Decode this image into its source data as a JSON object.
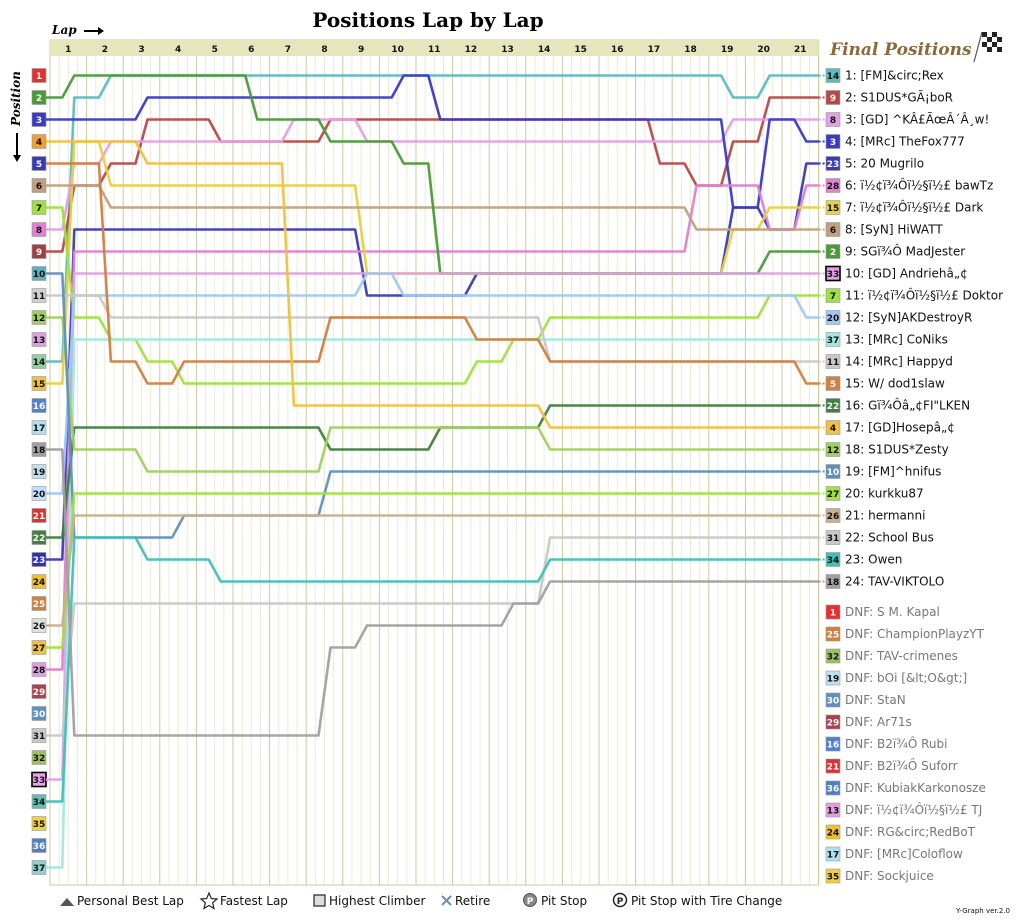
{
  "title": "Positions Lap by Lap",
  "xlabel": "Lap",
  "ylabel": "Position",
  "final_heading": "Final Positions",
  "version": "Y-Graph ver.2.0",
  "colors": {
    "background": "#ffffff",
    "header_band": "#e6e6bd",
    "grid": "#d4d4ad",
    "plot_bg": "#ffffff"
  },
  "legend": [
    {
      "icon": "triangle-icon",
      "label": "Personal Best Lap"
    },
    {
      "icon": "star-icon",
      "label": "Fastest Lap"
    },
    {
      "icon": "square-icon",
      "label": "Highest Climber"
    },
    {
      "icon": "cross-icon",
      "label": "Retire"
    },
    {
      "icon": "pit-stop-icon",
      "label": "Pit Stop"
    },
    {
      "icon": "pit-tire-icon",
      "label": "Pit Stop with Tire Change"
    }
  ],
  "chart_data": {
    "type": "line",
    "title": "Positions Lap by Lap",
    "xlabel": "Lap",
    "ylabel": "Position",
    "laps": [
      1,
      2,
      3,
      4,
      5,
      6,
      7,
      8,
      9,
      10,
      11,
      12,
      13,
      14,
      15,
      16,
      17,
      18,
      19,
      20,
      21
    ],
    "positions": [
      1,
      2,
      3,
      4,
      5,
      6,
      7,
      8,
      9,
      10,
      11,
      12,
      13,
      14,
      15,
      16,
      17,
      18,
      19,
      20,
      21,
      22,
      23,
      24,
      25,
      26,
      27,
      28,
      29,
      30,
      31,
      32,
      33,
      34,
      35,
      36,
      37
    ],
    "ylim": [
      1,
      37
    ],
    "xlim": [
      0,
      21
    ],
    "grid": true,
    "position_colors": [
      "#e53030",
      "#4a9a3a",
      "#3a3ac8",
      "#f0a030",
      "#3a3ab8",
      "#c0a080",
      "#a0e040",
      "#e080d0",
      "#a04040",
      "#60b0c0",
      "#d0d0d0",
      "#a0d060",
      "#e0a0e0",
      "#90d0a0",
      "#f0c040",
      "#5080d0",
      "#b0e0f0",
      "#a0a0a0",
      "#c0e0f0",
      "#c0e0ff",
      "#e03030",
      "#408040",
      "#3030b0",
      "#f0c030",
      "#d08040",
      "#e0e0e0",
      "#f0c040",
      "#e0a0e0",
      "#b04050",
      "#6090c0",
      "#c8c8c8",
      "#a0c060",
      "#f0a0f0",
      "#60c0b0",
      "#f0d040",
      "#5080c0",
      "#90d0d0"
    ],
    "series": [
      {
        "name": "[FM]&circ;Rex",
        "color": "#5cbcbc",
        "grid": 14,
        "final": 1,
        "positions": [
          14,
          2,
          1,
          1,
          1,
          1,
          1,
          1,
          1,
          1,
          1,
          1,
          1,
          1,
          1,
          1,
          1,
          1,
          1,
          2,
          1,
          1
        ]
      },
      {
        "name": "S1DUS*GÃ¡boR",
        "color": "#b84848",
        "grid": 9,
        "final": 2,
        "positions": [
          9,
          6,
          5,
          3,
          3,
          4,
          4,
          4,
          3,
          3,
          3,
          3,
          3,
          3,
          3,
          3,
          3,
          5,
          6,
          4,
          2,
          2
        ]
      },
      {
        "name": "[GD] ^KÂ£ÃœÂ´Â¸w!",
        "color": "#e4a0e4",
        "grid": 8,
        "final": 3,
        "positions": [
          8,
          5,
          4,
          4,
          4,
          4,
          4,
          3,
          3,
          4,
          4,
          4,
          4,
          4,
          4,
          4,
          4,
          4,
          4,
          3,
          3,
          3
        ]
      },
      {
        "name": "[MRc] TheFox777",
        "color": "#3a3ac8",
        "grid": 3,
        "final": 4,
        "positions": [
          3,
          3,
          3,
          2,
          2,
          2,
          2,
          2,
          2,
          2,
          1,
          3,
          3,
          3,
          3,
          3,
          3,
          3,
          3,
          7,
          3,
          4
        ]
      },
      {
        "name": "20 Mugrilo",
        "color": "#3a3ab8",
        "grid": 23,
        "final": 5,
        "positions": [
          23,
          8,
          8,
          8,
          8,
          8,
          8,
          8,
          8,
          11,
          11,
          11,
          10,
          10,
          10,
          10,
          10,
          10,
          10,
          7,
          8,
          5
        ]
      },
      {
        "name": "bawTz",
        "color": "#e080d0",
        "grid": 28,
        "final": 6,
        "positions": [
          28,
          9,
          9,
          9,
          9,
          9,
          9,
          9,
          9,
          9,
          9,
          9,
          9,
          9,
          9,
          9,
          9,
          9,
          6,
          6,
          8,
          6
        ]
      },
      {
        "name": "Dark",
        "color": "#e8d040",
        "grid": 15,
        "final": 7,
        "positions": [
          15,
          4,
          6,
          6,
          6,
          6,
          6,
          6,
          6,
          10,
          10,
          10,
          10,
          10,
          10,
          10,
          10,
          10,
          10,
          8,
          7,
          7
        ]
      },
      {
        "name": "[SyN] HiWATT",
        "color": "#c0a080",
        "grid": 6,
        "final": 8,
        "positions": [
          6,
          6,
          7,
          7,
          7,
          7,
          7,
          7,
          7,
          7,
          7,
          7,
          7,
          7,
          7,
          7,
          7,
          7,
          8,
          8,
          8,
          8
        ]
      },
      {
        "name": "MadJester",
        "color": "#4a9a3a",
        "grid": 2,
        "final": 9,
        "positions": [
          2,
          1,
          1,
          1,
          1,
          1,
          3,
          3,
          4,
          4,
          5,
          10,
          10,
          10,
          10,
          10,
          10,
          10,
          10,
          10,
          9,
          9
        ]
      },
      {
        "name": "[GD] Andriehâ„¢",
        "color": "#e0a0e0",
        "grid": 33,
        "final": 10,
        "positions": [
          33,
          10,
          10,
          10,
          10,
          10,
          10,
          10,
          10,
          10,
          10,
          10,
          10,
          10,
          10,
          10,
          10,
          10,
          10,
          10,
          10,
          10
        ]
      },
      {
        "name": "Doktor",
        "color": "#a0e040",
        "grid": 7,
        "final": 11,
        "positions": [
          7,
          12,
          13,
          14,
          15,
          15,
          15,
          15,
          15,
          15,
          15,
          15,
          14,
          13,
          12,
          12,
          12,
          12,
          12,
          12,
          11,
          11
        ]
      },
      {
        "name": "[SyN]AKDestroyR",
        "color": "#a0c8f0",
        "grid": 20,
        "final": 12,
        "positions": [
          20,
          11,
          11,
          11,
          11,
          11,
          11,
          11,
          11,
          10,
          11,
          11,
          11,
          11,
          11,
          11,
          11,
          11,
          11,
          11,
          11,
          12
        ]
      },
      {
        "name": "[MRc] CoNiks",
        "color": "#a0e8e0",
        "grid": 37,
        "final": 13,
        "positions": [
          37,
          13,
          13,
          13,
          13,
          13,
          13,
          13,
          13,
          13,
          13,
          13,
          13,
          13,
          13,
          13,
          13,
          13,
          13,
          13,
          13,
          13
        ]
      },
      {
        "name": "[MRc] Happyd",
        "color": "#c8c8c8",
        "grid": 11,
        "final": 14,
        "positions": [
          11,
          11,
          12,
          12,
          12,
          12,
          12,
          12,
          12,
          12,
          12,
          12,
          12,
          12,
          14,
          14,
          14,
          14,
          14,
          14,
          14,
          14
        ]
      },
      {
        "name": "W/ dod1slaw",
        "color": "#d08040",
        "grid": 5,
        "final": 15,
        "positions": [
          5,
          5,
          14,
          15,
          14,
          14,
          14,
          14,
          12,
          12,
          12,
          12,
          13,
          13,
          14,
          14,
          14,
          14,
          14,
          14,
          14,
          15
        ]
      },
      {
        "name": "Gi¾Ô¢FI\"LKEN",
        "color": "#408040",
        "grid": 22,
        "final": 16,
        "positions": [
          22,
          17,
          17,
          17,
          17,
          17,
          17,
          17,
          18,
          18,
          18,
          17,
          17,
          17,
          16,
          16,
          16,
          16,
          16,
          16,
          16,
          16
        ]
      },
      {
        "name": "[GD]Hosepâ„¢",
        "color": "#f0c040",
        "grid": 4,
        "final": 17,
        "positions": [
          4,
          4,
          4,
          5,
          5,
          5,
          5,
          16,
          16,
          16,
          16,
          16,
          16,
          16,
          17,
          17,
          17,
          17,
          17,
          17,
          17,
          17
        ]
      },
      {
        "name": "S1DUS*Zesty",
        "color": "#a0d060",
        "grid": 12,
        "final": 18,
        "positions": [
          12,
          18,
          18,
          19,
          19,
          19,
          19,
          19,
          17,
          17,
          17,
          17,
          17,
          17,
          18,
          18,
          18,
          18,
          18,
          18,
          18,
          18
        ]
      },
      {
        "name": "[FM]^hnifus",
        "color": "#6090c0",
        "grid": 10,
        "final": 19,
        "positions": [
          10,
          22,
          22,
          22,
          21,
          21,
          21,
          21,
          19,
          19,
          19,
          19,
          19,
          19,
          19,
          19,
          19,
          19,
          19,
          19,
          19,
          19
        ]
      },
      {
        "name": "kurkku87",
        "color": "#a0e040",
        "grid": 27,
        "final": 20,
        "positions": [
          27,
          20,
          20,
          20,
          20,
          20,
          20,
          20,
          20,
          20,
          20,
          20,
          20,
          20,
          20,
          20,
          20,
          20,
          20,
          20,
          20,
          20
        ]
      },
      {
        "name": "hermanni",
        "color": "#c8b090",
        "grid": 26,
        "final": 21,
        "positions": [
          26,
          21,
          21,
          21,
          21,
          21,
          21,
          21,
          21,
          21,
          21,
          21,
          21,
          21,
          21,
          21,
          21,
          21,
          21,
          21,
          21,
          21
        ]
      },
      {
        "name": "School Bus",
        "color": "#c8c8c8",
        "grid": 31,
        "final": 22,
        "positions": [
          31,
          25,
          25,
          25,
          25,
          25,
          25,
          25,
          25,
          25,
          25,
          25,
          25,
          25,
          22,
          22,
          22,
          22,
          22,
          22,
          22,
          22
        ]
      },
      {
        "name": "Owen",
        "color": "#40c0b8",
        "grid": 34,
        "final": 23,
        "positions": [
          34,
          22,
          22,
          23,
          23,
          24,
          24,
          24,
          24,
          24,
          24,
          24,
          24,
          24,
          23,
          23,
          23,
          23,
          23,
          23,
          23,
          23
        ]
      },
      {
        "name": "TAV-VIKTOLO",
        "color": "#a0a0a0",
        "grid": 18,
        "final": 24,
        "positions": [
          18,
          31,
          31,
          31,
          31,
          31,
          31,
          31,
          27,
          26,
          26,
          26,
          26,
          25,
          24,
          24,
          24,
          24,
          24,
          24,
          24,
          24
        ]
      }
    ],
    "dnf": [
      {
        "name": "S M. Kapal",
        "color": "#e53030",
        "grid": 1
      },
      {
        "name": "ChampionPlayzYT",
        "color": "#d08040",
        "grid": 25
      },
      {
        "name": "TAV-crimenes",
        "color": "#a0c060",
        "grid": 32
      },
      {
        "name": "bOi [&lt;O&gt;]",
        "color": "#c0e0f0",
        "grid": 19
      },
      {
        "name": "StaN",
        "color": "#6090c0",
        "grid": 30
      },
      {
        "name": "Ar71s",
        "color": "#b04050",
        "grid": 29
      },
      {
        "name": "B2ï¾Ô Rubi",
        "color": "#5080d0",
        "grid": 16
      },
      {
        "name": "B2ï¾Ô Suforr",
        "color": "#e03030",
        "grid": 21
      },
      {
        "name": "KubiakKarkonosze",
        "color": "#5080c0",
        "grid": 36
      },
      {
        "name": "ï½¢ï¾Ôï½§ï½£ TJ",
        "color": "#e0a0e0",
        "grid": 13
      },
      {
        "name": "RG&circ;RedBoT",
        "color": "#f0c030",
        "grid": 24
      },
      {
        "name": "[MRc]Coloflow",
        "color": "#b0e0f0",
        "grid": 17
      },
      {
        "name": "Sockjuice",
        "color": "#f0d040",
        "grid": 35
      }
    ],
    "finishers_display": [
      {
        "grid": 14,
        "label": "1: [FM]&circ;Rex"
      },
      {
        "grid": 9,
        "label": "2: S1DUS*GÃ¡boR"
      },
      {
        "grid": 8,
        "label": "3: [GD] ^KÂ£ÃœÂ´Â¸w!"
      },
      {
        "grid": 3,
        "label": "4: [MRc] TheFox777"
      },
      {
        "grid": 23,
        "label": "5: 20 Mugrilo"
      },
      {
        "grid": 28,
        "label": "6: ï½¢ï¾Ôï½§ï½£ bawTz"
      },
      {
        "grid": 15,
        "label": "7: ï½¢ï¾Ôï½§ï½£ Dark"
      },
      {
        "grid": 6,
        "label": "8: [SyN] HiWATT"
      },
      {
        "grid": 2,
        "label": "9: SGï¾Ô MadJester"
      },
      {
        "grid": 33,
        "label": "10: [GD] Andriehâ„¢"
      },
      {
        "grid": 7,
        "label": "11: ï½¢ï¾Ôï½§ï½£ Doktor"
      },
      {
        "grid": 20,
        "label": "12: [SyN]AKDestroyR"
      },
      {
        "grid": 37,
        "label": "13: [MRc] CoNiks"
      },
      {
        "grid": 11,
        "label": "14: [MRc] Happyd"
      },
      {
        "grid": 5,
        "label": "15: W/ dod1slaw"
      },
      {
        "grid": 22,
        "label": "16: Gï¾Ôâ„¢FI\"LKEN"
      },
      {
        "grid": 4,
        "label": "17: [GD]Hosepâ„¢"
      },
      {
        "grid": 12,
        "label": "18: S1DUS*Zesty"
      },
      {
        "grid": 10,
        "label": "19: [FM]^hnifus"
      },
      {
        "grid": 27,
        "label": "20: kurkku87"
      },
      {
        "grid": 26,
        "label": "21: hermanni"
      },
      {
        "grid": 31,
        "label": "22: School Bus"
      },
      {
        "grid": 34,
        "label": "23: Owen"
      },
      {
        "grid": 18,
        "label": "24: TAV-VIKTOLO"
      }
    ],
    "dnf_display": [
      {
        "grid": 1,
        "label": "DNF: S M. Kapal"
      },
      {
        "grid": 25,
        "label": "DNF: ChampionPlayzYT"
      },
      {
        "grid": 32,
        "label": "DNF: TAV-crimenes"
      },
      {
        "grid": 19,
        "label": "DNF: bOi [&lt;O&gt;]"
      },
      {
        "grid": 30,
        "label": "DNF: StaN"
      },
      {
        "grid": 29,
        "label": "DNF: Ar71s"
      },
      {
        "grid": 16,
        "label": "DNF: B2ï¾Ô Rubi"
      },
      {
        "grid": 21,
        "label": "DNF: B2ï¾Ô Suforr"
      },
      {
        "grid": 36,
        "label": "DNF: KubiakKarkonosze"
      },
      {
        "grid": 13,
        "label": "DNF: ï½¢ï¾Ôï½§ï½£ TJ"
      },
      {
        "grid": 24,
        "label": "DNF: RG&circ;RedBoT"
      },
      {
        "grid": 17,
        "label": "DNF: [MRc]Coloflow"
      },
      {
        "grid": 35,
        "label": "DNF: Sockjuice"
      }
    ]
  }
}
